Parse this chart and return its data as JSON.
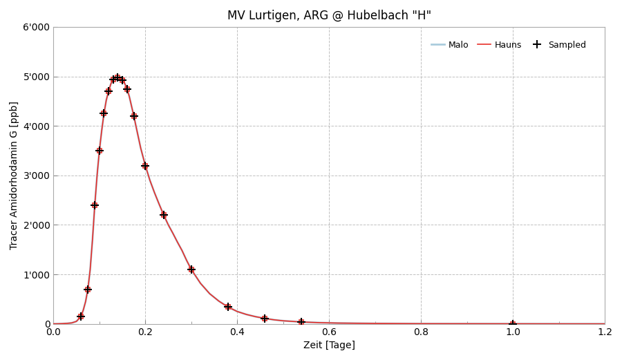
{
  "title": "MV Lurtigen, ARG @ Hubelbach \"H\"",
  "xlabel": "Zeit [Tage]",
  "ylabel": "Tracer Amidorhodamin G [ppb]",
  "xlim": [
    0.0,
    1.2
  ],
  "ylim": [
    0,
    6000
  ],
  "xticks": [
    0.0,
    0.2,
    0.4,
    0.6,
    0.8,
    1.0,
    1.2
  ],
  "yticks": [
    0,
    1000,
    2000,
    3000,
    4000,
    5000,
    6000
  ],
  "ytick_labels": [
    "0",
    "1'000",
    "2'000",
    "3'000",
    "4'000",
    "5'000",
    "6'000"
  ],
  "curve_x": [
    0.0,
    0.01,
    0.02,
    0.03,
    0.04,
    0.05,
    0.06,
    0.065,
    0.07,
    0.075,
    0.08,
    0.085,
    0.09,
    0.095,
    0.1,
    0.105,
    0.11,
    0.115,
    0.12,
    0.125,
    0.13,
    0.135,
    0.14,
    0.145,
    0.15,
    0.155,
    0.16,
    0.165,
    0.17,
    0.175,
    0.18,
    0.19,
    0.2,
    0.21,
    0.22,
    0.23,
    0.24,
    0.25,
    0.26,
    0.27,
    0.28,
    0.29,
    0.3,
    0.32,
    0.34,
    0.36,
    0.38,
    0.4,
    0.42,
    0.44,
    0.46,
    0.48,
    0.5,
    0.54,
    0.58,
    0.62,
    0.7,
    0.8,
    0.9,
    1.0,
    1.1,
    1.2
  ],
  "curve_y": [
    0,
    2,
    5,
    10,
    20,
    50,
    150,
    280,
    450,
    700,
    1100,
    1700,
    2400,
    3000,
    3500,
    3900,
    4250,
    4520,
    4700,
    4850,
    4940,
    4980,
    4980,
    4960,
    4920,
    4860,
    4750,
    4600,
    4400,
    4200,
    3980,
    3550,
    3200,
    2900,
    2650,
    2420,
    2200,
    2000,
    1830,
    1650,
    1480,
    1280,
    1100,
    820,
    610,
    460,
    340,
    250,
    190,
    145,
    110,
    82,
    62,
    38,
    24,
    16,
    8,
    4,
    3,
    2,
    1,
    0.5
  ],
  "hauns_markers_x": [
    0.06,
    0.075,
    0.09,
    0.1,
    0.11,
    0.12,
    0.13,
    0.14,
    0.15,
    0.16,
    0.175,
    0.2,
    0.24,
    0.3,
    0.38,
    0.46,
    0.54,
    1.0
  ],
  "hauns_markers_y": [
    150,
    700,
    2400,
    3500,
    4250,
    4700,
    4940,
    4980,
    4920,
    4750,
    4200,
    3200,
    2200,
    1100,
    340,
    110,
    38,
    2
  ],
  "sampled_x": [
    0.06,
    0.075,
    0.09,
    0.1,
    0.11,
    0.12,
    0.13,
    0.14,
    0.15,
    0.16,
    0.175,
    0.2,
    0.24,
    0.3,
    0.38,
    0.46,
    0.54,
    1.0
  ],
  "sampled_y": [
    150,
    700,
    2400,
    3500,
    4250,
    4700,
    4940,
    4980,
    4920,
    4750,
    4200,
    3200,
    2200,
    1100,
    340,
    110,
    38,
    2
  ],
  "malo_color": "#aaccdd",
  "hauns_color": "#e8302a",
  "sampled_color": "#000000",
  "background_color": "#ffffff",
  "grid_color": "#c0c0c0",
  "title_fontsize": 12,
  "axis_label_fontsize": 10,
  "tick_fontsize": 10
}
